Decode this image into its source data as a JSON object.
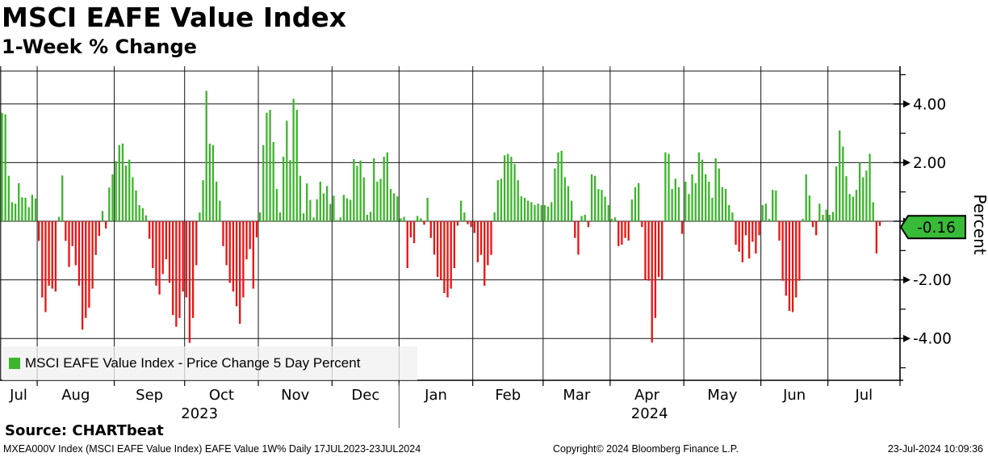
{
  "header": {
    "title": "MSCI EAFE Value Index",
    "subtitle": "1-Week % Change"
  },
  "legend": {
    "label": "MSCI EAFE Value Index - Price Change 5 Day Percent"
  },
  "axis_tag": {
    "value": "-0.16"
  },
  "footer": {
    "source": "Source: CHARTbeat",
    "info": "MXEA000V Index (MSCI EAFE Value Index) EAFE Value 1W%  Daily 17JUL2023-23JUL2024",
    "copyright": "Copyright© 2024 Bloomberg Finance L.P.",
    "timestamp": "23-Jul-2024 10:09:36"
  },
  "colors": {
    "positive": "#3cb42c",
    "negative": "#ee1111",
    "tag_bg": "#38bb38",
    "grid": "#141414",
    "axis": "#000000",
    "legend_bg": "#f1f1f1"
  },
  "chart_data": {
    "type": "bar",
    "title": "MSCI EAFE Value Index",
    "subtitle": "1-Week % Change",
    "ylabel": "Percent",
    "xlabel": "",
    "ylim": [
      -5.5,
      5.3
    ],
    "yticks_major": [
      4,
      2,
      0,
      -2,
      -4
    ],
    "yticks_minor": [
      5,
      3,
      1,
      -1,
      -3,
      -5
    ],
    "grid": true,
    "legend_position": "bottom-left",
    "last_value": -0.16,
    "period": "Daily 17JUL2023-23JUL2024",
    "years": [
      {
        "label": "2023",
        "month_span": [
          0,
          6
        ]
      },
      {
        "label": "2024",
        "month_span": [
          6,
          13
        ]
      }
    ],
    "months": [
      {
        "label": "Jul",
        "year": "2023",
        "values": [
          3.7,
          3.65,
          1.55,
          0.65,
          0.6,
          1.3,
          0.82,
          0.8,
          0.48,
          0.9,
          0.78
        ]
      },
      {
        "label": "Aug",
        "year": "2023",
        "values": [
          -0.67,
          -2.6,
          -3.1,
          -2.2,
          -2.3,
          -2.4,
          0.15,
          1.56,
          -0.67,
          -1.56,
          -0.85,
          -1.5,
          -2.2,
          -3.7,
          -3.3,
          -2.95,
          -2.3,
          -1.15,
          -0.5,
          0.35,
          -0.25,
          1.15,
          1.6
        ]
      },
      {
        "label": "Sep",
        "year": "2023",
        "values": [
          2.05,
          2.6,
          2.65,
          1.9,
          2.1,
          1.5,
          1.05,
          0.55,
          0.45,
          0.2,
          -0.6,
          -1.6,
          -2.2,
          -2.5,
          -1.8,
          -1.3,
          -2.1,
          -3.2,
          -3.6,
          -3.3,
          -2.4
        ]
      },
      {
        "label": "Oct",
        "year": "2023",
        "values": [
          -2.6,
          -4.15,
          -3.3,
          -1.5,
          0.3,
          1.4,
          4.45,
          2.65,
          2.6,
          1.35,
          0.7,
          -0.85,
          -1.5,
          -2.1,
          -2.4,
          -2.9,
          -3.5,
          -2.6,
          -1.3,
          -0.95,
          -2.3,
          -0.55
        ]
      },
      {
        "label": "Nov",
        "year": "2023",
        "values": [
          0.3,
          2.6,
          3.7,
          3.8,
          2.7,
          1.1,
          0.3,
          2.2,
          3.43,
          2.09,
          4.18,
          3.8,
          1.55,
          0.27,
          1.29,
          0.73,
          0.13,
          0.75,
          1.35,
          0.95,
          1.2,
          0.59
        ]
      },
      {
        "label": "Dec",
        "year": "2023",
        "values": [
          0.87,
          0.04,
          0.13,
          0.9,
          0.78,
          0.73,
          2.12,
          1.89,
          2.07,
          1.5,
          0.22,
          0.32,
          2.15,
          1.35,
          1.45,
          2.2,
          2.35,
          1.1,
          0.95,
          0.85
        ]
      },
      {
        "label": "Jan",
        "year": "2024",
        "values": [
          0.1,
          0.15,
          -1.6,
          -0.55,
          -0.75,
          0.18,
          0.1,
          -0.12,
          0.8,
          -0.57,
          -1.14,
          -1.9,
          -2.0,
          -2.45,
          -2.6,
          -2.3,
          -1.6,
          -0.15,
          0.7,
          0.3,
          -0.1,
          -0.2
        ]
      },
      {
        "label": "Feb",
        "year": "2024",
        "values": [
          -0.4,
          -1.4,
          -1.15,
          -2.2,
          -1.5,
          -1.15,
          0.3,
          1.4,
          1.45,
          2.25,
          2.3,
          2.2,
          1.95,
          1.4,
          0.85,
          0.8,
          0.7,
          0.65,
          0.55,
          0.6,
          0.55
        ]
      },
      {
        "label": "Mar",
        "year": "2024",
        "values": [
          0.55,
          0.5,
          0.65,
          1.8,
          2.35,
          2.4,
          1.5,
          1.2,
          0.7,
          -0.57,
          -1.14,
          0.18,
          0.22,
          -0.2,
          1.6,
          1.55,
          1.1,
          1.07,
          0.84,
          0.55
        ]
      },
      {
        "label": "Apr",
        "year": "2024",
        "values": [
          0.08,
          0.13,
          -0.85,
          -0.8,
          -0.57,
          -0.66,
          0.74,
          1.16,
          1.3,
          -0.2,
          -2.0,
          -2.03,
          -4.14,
          -3.3,
          -1.9,
          -2.0,
          2.35,
          2.3,
          1.1,
          1.45,
          1.16,
          -0.43
        ]
      },
      {
        "label": "May",
        "year": "2024",
        "values": [
          1.35,
          0.93,
          1.6,
          1.3,
          2.35,
          2.1,
          1.6,
          1.35,
          0.8,
          2.15,
          1.8,
          1.16,
          1.1,
          0.55,
          0.3,
          -0.8,
          -1.04,
          -1.4,
          -0.48,
          -1.27,
          -0.7,
          -1.1,
          -0.48
        ]
      },
      {
        "label": "Jun",
        "year": "2024",
        "values": [
          0.55,
          0.6,
          0.08,
          1.07,
          1.05,
          -0.66,
          -2.03,
          -2.54,
          -3.06,
          -3.1,
          -2.6,
          -2.03,
          0.08,
          1.6,
          0.88,
          -0.2,
          -0.48,
          0.6,
          0.22,
          0.4
        ]
      },
      {
        "label": "Jul",
        "year": "2024",
        "values": [
          0.22,
          0.32,
          1.87,
          3.1,
          2.55,
          1.54,
          0.93,
          0.84,
          1.07,
          2.0,
          1.5,
          1.73,
          2.3,
          0.65,
          -1.1,
          -0.16
        ]
      }
    ]
  }
}
